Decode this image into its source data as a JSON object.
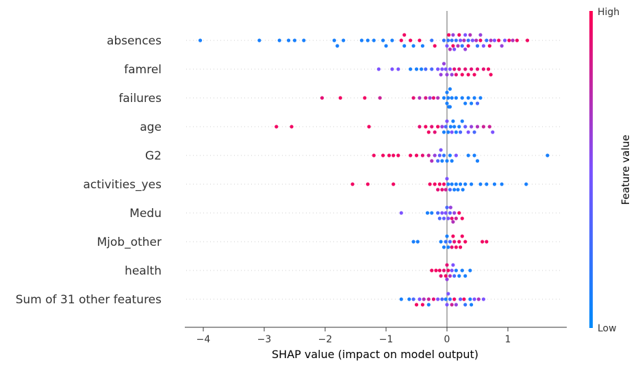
{
  "chart_data": {
    "type": "scatter",
    "subtype": "shap-beeswarm",
    "title": "",
    "xlabel": "SHAP value (impact on model output)",
    "xlim": [
      -4.3,
      1.95
    ],
    "xticks": [
      -4,
      -3,
      -2,
      -1,
      0,
      1
    ],
    "xtick_labels": [
      "−4",
      "−3",
      "−2",
      "−1",
      "0",
      "1"
    ],
    "colorbar": {
      "title": "Feature value",
      "high_label": "High",
      "low_label": "Low",
      "low_color": "#008bfb",
      "mid_color": "#7c52ff",
      "high_color": "#ff0052"
    },
    "features": [
      {
        "name": "absences",
        "points": [
          [
            -4.05,
            0.1
          ],
          [
            -3.08,
            0.1
          ],
          [
            -2.75,
            0.1
          ],
          [
            -2.6,
            0.1
          ],
          [
            -2.5,
            0.1
          ],
          [
            -2.35,
            0.1
          ],
          [
            -1.85,
            0.1
          ],
          [
            -1.8,
            0.1
          ],
          [
            -1.7,
            0.1
          ],
          [
            -1.4,
            0.1
          ],
          [
            -1.3,
            0.1
          ],
          [
            -1.2,
            0.1
          ],
          [
            -1.05,
            0.1
          ],
          [
            -1.0,
            0.1
          ],
          [
            -0.9,
            0.1
          ],
          [
            -0.7,
            0.1
          ],
          [
            -0.55,
            0.1
          ],
          [
            -0.4,
            0.1
          ],
          [
            -0.25,
            0.2
          ],
          [
            -0.05,
            0.2
          ],
          [
            0.02,
            0.2
          ],
          [
            0.08,
            0.2
          ],
          [
            0.15,
            0.2
          ],
          [
            0.25,
            0.2
          ],
          [
            0.35,
            0.2
          ],
          [
            0.5,
            0.2
          ],
          [
            0.65,
            0.2
          ],
          [
            -0.75,
            0.95
          ],
          [
            -0.7,
            0.95
          ],
          [
            -0.6,
            0.95
          ],
          [
            -0.45,
            0.95
          ],
          [
            -0.2,
            0.95
          ],
          [
            0.03,
            0.95
          ],
          [
            0.1,
            0.95
          ],
          [
            0.2,
            0.95
          ],
          [
            0.35,
            0.95
          ],
          [
            0.55,
            0.95
          ],
          [
            0.7,
            0.95
          ],
          [
            0.85,
            0.95
          ],
          [
            1.02,
            0.95
          ],
          [
            1.15,
            0.95
          ],
          [
            1.32,
            0.95
          ],
          [
            0.0,
            0.5
          ],
          [
            0.12,
            0.5
          ],
          [
            0.22,
            0.5
          ],
          [
            0.3,
            0.5
          ],
          [
            0.42,
            0.5
          ],
          [
            0.6,
            0.5
          ],
          [
            0.78,
            0.5
          ],
          [
            0.95,
            0.5
          ],
          [
            0.05,
            0.7
          ],
          [
            0.18,
            0.7
          ],
          [
            0.28,
            0.7
          ],
          [
            0.38,
            0.7
          ],
          [
            0.48,
            0.7
          ],
          [
            0.72,
            0.7
          ],
          [
            1.08,
            0.7
          ],
          [
            0.1,
            0.6
          ],
          [
            0.3,
            0.6
          ],
          [
            0.55,
            0.6
          ],
          [
            0.9,
            0.6
          ]
        ]
      },
      {
        "name": "famrel",
        "points": [
          [
            -1.12,
            0.5
          ],
          [
            -0.9,
            0.5
          ],
          [
            -0.8,
            0.5
          ],
          [
            -0.6,
            0.1
          ],
          [
            -0.5,
            0.1
          ],
          [
            -0.42,
            0.1
          ],
          [
            -0.35,
            0.3
          ],
          [
            -0.25,
            0.3
          ],
          [
            -0.15,
            0.5
          ],
          [
            -0.08,
            0.5
          ],
          [
            -0.02,
            0.5
          ],
          [
            0.05,
            0.5
          ],
          [
            0.12,
            0.9
          ],
          [
            0.2,
            0.9
          ],
          [
            0.3,
            0.9
          ],
          [
            0.4,
            0.9
          ],
          [
            0.5,
            0.9
          ],
          [
            0.6,
            0.9
          ],
          [
            0.68,
            0.95
          ],
          [
            0.72,
            0.95
          ],
          [
            0.25,
            0.95
          ],
          [
            0.35,
            0.95
          ],
          [
            0.45,
            0.95
          ],
          [
            0.15,
            0.9
          ],
          [
            -0.05,
            0.6
          ],
          [
            0.0,
            0.6
          ],
          [
            0.08,
            0.6
          ],
          [
            -0.1,
            0.6
          ]
        ]
      },
      {
        "name": "failures",
        "points": [
          [
            -2.05,
            0.9
          ],
          [
            -1.75,
            0.95
          ],
          [
            -1.35,
            0.95
          ],
          [
            -1.1,
            0.8
          ],
          [
            -0.55,
            0.9
          ],
          [
            -0.45,
            0.7
          ],
          [
            -0.35,
            0.85
          ],
          [
            -0.28,
            0.6
          ],
          [
            -0.22,
            0.9
          ],
          [
            -0.15,
            0.7
          ],
          [
            -0.05,
            0.1
          ],
          [
            0.0,
            0.1
          ],
          [
            0.03,
            0.1
          ],
          [
            0.05,
            0.1
          ],
          [
            0.08,
            0.1
          ],
          [
            0.0,
            0.1
          ],
          [
            0.02,
            0.1
          ],
          [
            0.05,
            0.1
          ],
          [
            0.15,
            0.1
          ],
          [
            0.25,
            0.1
          ],
          [
            0.35,
            0.1
          ],
          [
            0.45,
            0.1
          ],
          [
            0.55,
            0.1
          ],
          [
            0.4,
            0.1
          ],
          [
            0.3,
            0.1
          ],
          [
            0.5,
            0.3
          ]
        ]
      },
      {
        "name": "age",
        "points": [
          [
            -2.8,
            0.95
          ],
          [
            -2.55,
            0.95
          ],
          [
            -1.28,
            0.95
          ],
          [
            -0.45,
            0.9
          ],
          [
            -0.35,
            0.95
          ],
          [
            -0.25,
            0.9
          ],
          [
            -0.15,
            0.95
          ],
          [
            -0.08,
            0.6
          ],
          [
            -0.02,
            0.3
          ],
          [
            0.02,
            0.1
          ],
          [
            0.06,
            0.1
          ],
          [
            0.1,
            0.1
          ],
          [
            0.15,
            0.1
          ],
          [
            0.22,
            0.3
          ],
          [
            0.3,
            0.4
          ],
          [
            0.4,
            0.6
          ],
          [
            0.5,
            0.7
          ],
          [
            0.6,
            0.8
          ],
          [
            0.7,
            0.8
          ],
          [
            0.75,
            0.5
          ],
          [
            0.35,
            0.5
          ],
          [
            0.45,
            0.3
          ],
          [
            0.0,
            0.5
          ],
          [
            0.08,
            0.5
          ],
          [
            -0.05,
            0.1
          ],
          [
            0.12,
            0.1
          ],
          [
            0.2,
            0.1
          ],
          [
            0.25,
            0.1
          ],
          [
            -0.2,
            0.9
          ],
          [
            -0.3,
            0.95
          ]
        ]
      },
      {
        "name": "G2",
        "points": [
          [
            -1.2,
            0.95
          ],
          [
            -1.05,
            0.95
          ],
          [
            -0.95,
            0.95
          ],
          [
            -0.88,
            0.95
          ],
          [
            -0.8,
            0.95
          ],
          [
            -0.6,
            0.95
          ],
          [
            -0.5,
            0.95
          ],
          [
            -0.4,
            0.9
          ],
          [
            -0.3,
            0.8
          ],
          [
            -0.2,
            0.6
          ],
          [
            -0.12,
            0.4
          ],
          [
            -0.05,
            0.2
          ],
          [
            0.0,
            0.1
          ],
          [
            0.05,
            0.1
          ],
          [
            0.08,
            0.1
          ],
          [
            -0.08,
            0.1
          ],
          [
            -0.15,
            0.3
          ],
          [
            0.15,
            0.5
          ],
          [
            0.35,
            0.1
          ],
          [
            0.45,
            0.1
          ],
          [
            0.5,
            0.1
          ],
          [
            1.65,
            0.1
          ],
          [
            -0.25,
            0.7
          ],
          [
            -0.1,
            0.5
          ]
        ]
      },
      {
        "name": "activities_yes",
        "points": [
          [
            -1.55,
            0.95
          ],
          [
            -1.3,
            0.95
          ],
          [
            -0.88,
            0.95
          ],
          [
            -0.28,
            0.95
          ],
          [
            -0.2,
            0.95
          ],
          [
            -0.12,
            0.95
          ],
          [
            -0.05,
            0.95
          ],
          [
            -0.02,
            0.8
          ],
          [
            0.02,
            0.1
          ],
          [
            0.08,
            0.1
          ],
          [
            0.15,
            0.1
          ],
          [
            0.22,
            0.1
          ],
          [
            0.3,
            0.1
          ],
          [
            0.4,
            0.1
          ],
          [
            0.55,
            0.1
          ],
          [
            0.65,
            0.1
          ],
          [
            0.78,
            0.1
          ],
          [
            0.9,
            0.1
          ],
          [
            1.3,
            0.1
          ],
          [
            0.12,
            0.1
          ],
          [
            0.18,
            0.1
          ],
          [
            -0.15,
            0.9
          ],
          [
            -0.08,
            0.9
          ],
          [
            0.0,
            0.5
          ],
          [
            0.05,
            0.3
          ],
          [
            0.26,
            0.1
          ]
        ]
      },
      {
        "name": "Medu",
        "points": [
          [
            -0.75,
            0.5
          ],
          [
            -0.32,
            0.1
          ],
          [
            -0.25,
            0.1
          ],
          [
            -0.15,
            0.3
          ],
          [
            -0.08,
            0.5
          ],
          [
            -0.02,
            0.5
          ],
          [
            0.02,
            0.5
          ],
          [
            0.06,
            0.6
          ],
          [
            0.1,
            0.7
          ],
          [
            0.15,
            0.8
          ],
          [
            0.25,
            0.95
          ],
          [
            0.0,
            0.3
          ],
          [
            -0.05,
            0.4
          ],
          [
            0.05,
            0.4
          ],
          [
            0.12,
            0.6
          ],
          [
            0.08,
            0.9
          ],
          [
            0.2,
            0.95
          ],
          [
            -0.12,
            0.3
          ]
        ]
      },
      {
        "name": "Mjob_other",
        "points": [
          [
            -0.55,
            0.1
          ],
          [
            -0.48,
            0.1
          ],
          [
            -0.1,
            0.1
          ],
          [
            -0.05,
            0.1
          ],
          [
            0.0,
            0.1
          ],
          [
            0.02,
            0.1
          ],
          [
            0.05,
            0.3
          ],
          [
            0.1,
            0.95
          ],
          [
            0.15,
            0.95
          ],
          [
            0.2,
            0.95
          ],
          [
            0.25,
            0.95
          ],
          [
            0.3,
            0.95
          ],
          [
            0.58,
            0.95
          ],
          [
            0.65,
            0.95
          ],
          [
            -0.02,
            0.2
          ],
          [
            0.08,
            0.9
          ],
          [
            0.12,
            0.9
          ],
          [
            0.22,
            0.95
          ]
        ]
      },
      {
        "name": "health",
        "points": [
          [
            -0.25,
            0.95
          ],
          [
            -0.18,
            0.95
          ],
          [
            -0.1,
            0.9
          ],
          [
            -0.05,
            0.9
          ],
          [
            0.0,
            0.9
          ],
          [
            0.05,
            0.7
          ],
          [
            0.1,
            0.5
          ],
          [
            0.15,
            0.1
          ],
          [
            0.2,
            0.1
          ],
          [
            0.25,
            0.1
          ],
          [
            0.3,
            0.1
          ],
          [
            0.38,
            0.1
          ],
          [
            -0.02,
            0.95
          ],
          [
            0.02,
            0.95
          ],
          [
            0.08,
            0.5
          ],
          [
            0.12,
            0.3
          ],
          [
            -0.12,
            0.95
          ],
          [
            0.0,
            0.6
          ]
        ]
      },
      {
        "name": "Sum of 31 other features",
        "points": [
          [
            -0.75,
            0.1
          ],
          [
            -0.62,
            0.1
          ],
          [
            -0.55,
            0.3
          ],
          [
            -0.45,
            0.5
          ],
          [
            -0.38,
            0.7
          ],
          [
            -0.3,
            0.8
          ],
          [
            -0.22,
            0.9
          ],
          [
            -0.15,
            0.5
          ],
          [
            -0.08,
            0.3
          ],
          [
            -0.02,
            0.1
          ],
          [
            0.02,
            0.5
          ],
          [
            0.08,
            0.8
          ],
          [
            0.15,
            0.6
          ],
          [
            0.22,
            0.4
          ],
          [
            0.3,
            0.2
          ],
          [
            0.38,
            0.1
          ],
          [
            0.45,
            0.5
          ],
          [
            0.52,
            0.7
          ],
          [
            0.6,
            0.5
          ],
          [
            -0.5,
            0.95
          ],
          [
            -0.4,
            0.95
          ],
          [
            0.12,
            0.95
          ],
          [
            0.28,
            0.95
          ],
          [
            0.4,
            0.1
          ],
          [
            -0.3,
            0.1
          ],
          [
            0.0,
            0.5
          ],
          [
            0.05,
            0.2
          ]
        ]
      }
    ]
  }
}
